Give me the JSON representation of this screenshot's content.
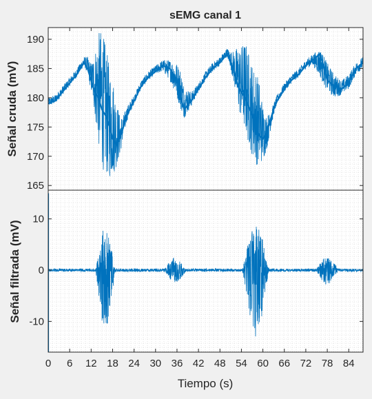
{
  "figure": {
    "title": "sEMG canal 1"
  },
  "chart_data": [
    {
      "type": "line",
      "title": "sEMG canal 1",
      "ylabel": "Señal cruda (mV)",
      "xlabel": "",
      "xlim": [
        0,
        88
      ],
      "ylim": [
        164.2,
        192
      ],
      "yticks": [
        165,
        170,
        175,
        180,
        185,
        190
      ],
      "grid": true,
      "series": [
        {
          "color": "#0072bd",
          "envelope": {
            "x": [
              0,
              2,
              4,
              6,
              8,
              10,
              11,
              12,
              13,
              14,
              15,
              16,
              17,
              18,
              19,
              20,
              21,
              22,
              24,
              26,
              28,
              30,
              32,
              34,
              36,
              37,
              38,
              40,
              42,
              44,
              46,
              48,
              50,
              51,
              52,
              53,
              54,
              55,
              56,
              57,
              58,
              59,
              60,
              61,
              62,
              63,
              64,
              66,
              68,
              70,
              72,
              74,
              76,
              78,
              80,
              82,
              84,
              86,
              88
            ],
            "baseline": [
              179,
              179.5,
              181,
              182.5,
              184,
              186,
              185,
              183,
              181,
              180,
              178,
              177,
              175.5,
              173,
              172,
              173,
              175,
              177,
              179.5,
              182,
              183.5,
              184.5,
              185.5,
              185,
              183,
              180,
              178,
              179.5,
              181.5,
              183.5,
              185,
              186,
              187.5,
              186,
              184.5,
              182,
              181,
              180,
              178.5,
              177,
              175,
              173.5,
              173,
              174,
              176,
              178,
              179.5,
              181.5,
              183,
              184,
              185.5,
              186.5,
              187.5,
              183,
              182,
              181.5,
              182.5,
              185,
              186
            ],
            "upper": [
              180,
              180.5,
              182,
              183.5,
              185,
              187,
              187,
              186,
              188,
              191,
              192,
              189,
              186,
              184,
              180,
              177,
              177,
              178.5,
              180.5,
              183,
              184.5,
              185.5,
              186.5,
              186.5,
              186,
              185,
              182,
              181,
              182.5,
              184.5,
              186,
              187,
              188.5,
              188,
              188,
              189,
              189,
              190,
              188,
              186,
              185,
              183,
              179,
              177,
              177.5,
              179,
              180.5,
              182.5,
              184,
              185,
              186.5,
              187.5,
              188.5,
              186,
              184,
              183,
              184,
              186,
              187
            ],
            "lower": [
              178.5,
              179,
              180.5,
              182,
              183.5,
              185.5,
              184,
              181,
              177,
              172,
              168,
              167,
              166,
              166.5,
              168,
              170,
              173,
              176,
              179,
              181.5,
              183,
              184,
              184.5,
              183,
              180,
              178,
              176.5,
              178.5,
              181,
              183,
              184.5,
              185.5,
              187,
              185,
              182,
              178,
              176,
              174,
              172,
              170,
              168.5,
              168.5,
              169,
              171,
              174,
              177,
              179,
              181,
              182.5,
              183.5,
              185,
              185.5,
              183.5,
              181,
              180,
              180.5,
              181.5,
              184,
              185
            ]
          }
        }
      ]
    },
    {
      "type": "line",
      "title": "",
      "ylabel": "Señal filtrada (mV)",
      "xlabel": "Tiempo (s)",
      "xlim": [
        0,
        88
      ],
      "ylim": [
        -16,
        15.6
      ],
      "yticks": [
        -10,
        0,
        10
      ],
      "xticks": [
        0,
        6,
        12,
        18,
        24,
        30,
        36,
        42,
        48,
        54,
        60,
        66,
        72,
        78,
        84
      ],
      "grid": true,
      "series": [
        {
          "color": "#0072bd",
          "bursts": [
            {
              "center": 16,
              "width": 6,
              "amp_pos": 8.5,
              "amp_neg": 12
            },
            {
              "center": 35.5,
              "width": 7,
              "amp_pos": 2.5,
              "amp_neg": 2.5
            },
            {
              "center": 58,
              "width": 8,
              "amp_pos": 9.5,
              "amp_neg": 13
            },
            {
              "center": 78,
              "width": 7,
              "amp_pos": 3,
              "amp_neg": 3
            }
          ],
          "noise_floor": 0.3,
          "start_spike": [
            15,
            -16
          ]
        }
      ]
    }
  ]
}
